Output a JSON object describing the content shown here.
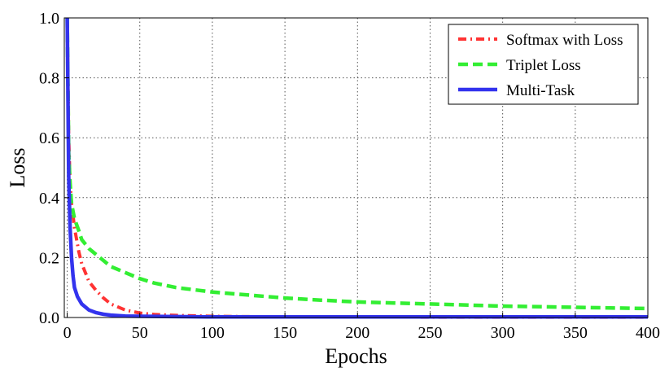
{
  "chart_data": {
    "type": "line",
    "title": "",
    "xlabel": "Epochs",
    "ylabel": "Loss",
    "xlim": [
      -2,
      400
    ],
    "ylim": [
      0.0,
      1.0
    ],
    "x_ticks": [
      0,
      50,
      100,
      150,
      200,
      250,
      300,
      350,
      400
    ],
    "y_ticks": [
      0.0,
      0.2,
      0.4,
      0.6,
      0.8,
      1.0
    ],
    "x_tick_labels": [
      "0",
      "50",
      "100",
      "150",
      "200",
      "250",
      "300",
      "350",
      "400"
    ],
    "y_tick_labels": [
      "0.0",
      "0.2",
      "0.4",
      "0.6",
      "0.8",
      "1.0"
    ],
    "grid": true,
    "legend_position": "top-right",
    "series": [
      {
        "name": "Softmax with Loss",
        "color": "#ff3333",
        "style": "dash-dot",
        "x": [
          0,
          1,
          2,
          3,
          5,
          8,
          10,
          15,
          20,
          25,
          30,
          40,
          50,
          60,
          75,
          100,
          150,
          200,
          250,
          300,
          350,
          400
        ],
        "y": [
          1.0,
          0.6,
          0.45,
          0.38,
          0.3,
          0.22,
          0.18,
          0.12,
          0.09,
          0.065,
          0.045,
          0.025,
          0.015,
          0.01,
          0.007,
          0.004,
          0.002,
          0.0015,
          0.001,
          0.001,
          0.001,
          0.001
        ]
      },
      {
        "name": "Triplet Loss",
        "color": "#33ee33",
        "style": "dashed",
        "x": [
          0,
          1,
          2,
          3,
          5,
          8,
          10,
          15,
          20,
          30,
          40,
          50,
          60,
          75,
          100,
          125,
          150,
          175,
          200,
          250,
          300,
          350,
          400
        ],
        "y": [
          1.0,
          0.55,
          0.45,
          0.38,
          0.33,
          0.29,
          0.26,
          0.23,
          0.21,
          0.17,
          0.15,
          0.13,
          0.115,
          0.1,
          0.085,
          0.075,
          0.065,
          0.058,
          0.052,
          0.045,
          0.038,
          0.034,
          0.03
        ]
      },
      {
        "name": "Multi-Task",
        "color": "#3333ee",
        "style": "solid",
        "x": [
          0,
          1,
          2,
          3,
          4,
          5,
          7,
          10,
          15,
          20,
          25,
          30,
          40,
          50,
          75,
          100,
          150,
          200,
          250,
          300,
          350,
          400
        ],
        "y": [
          1.0,
          0.47,
          0.3,
          0.2,
          0.14,
          0.1,
          0.07,
          0.045,
          0.025,
          0.016,
          0.011,
          0.008,
          0.005,
          0.004,
          0.003,
          0.002,
          0.002,
          0.002,
          0.002,
          0.002,
          0.002,
          0.002
        ]
      }
    ]
  }
}
